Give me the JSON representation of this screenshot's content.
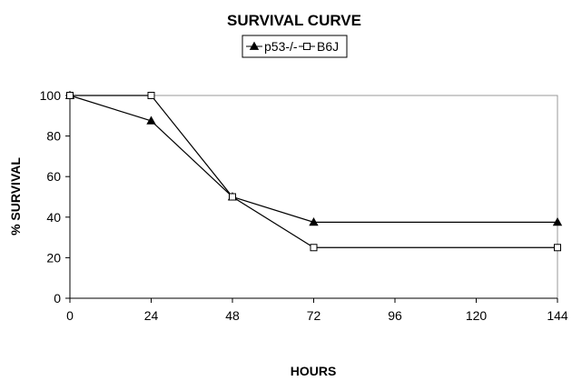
{
  "chart_data": {
    "type": "line",
    "title": "SURVIVAL CURVE",
    "xlabel": "HOURS",
    "ylabel": "% SURVIVAL",
    "x": [
      0,
      24,
      48,
      72,
      144
    ],
    "x_ticks": [
      "0",
      "24",
      "48",
      "72",
      "96",
      "120",
      "144"
    ],
    "y_ticks": [
      "0",
      "20",
      "40",
      "60",
      "80",
      "100"
    ],
    "xlim": [
      0,
      144
    ],
    "ylim": [
      0,
      100
    ],
    "grid": false,
    "legend_position": "top-center",
    "series": [
      {
        "name": "p53-/-",
        "marker": "filled-triangle",
        "values": [
          100,
          87.5,
          50,
          37.5,
          37.5
        ]
      },
      {
        "name": "B6J",
        "marker": "open-square",
        "values": [
          100,
          100,
          50,
          25,
          25
        ]
      }
    ]
  }
}
